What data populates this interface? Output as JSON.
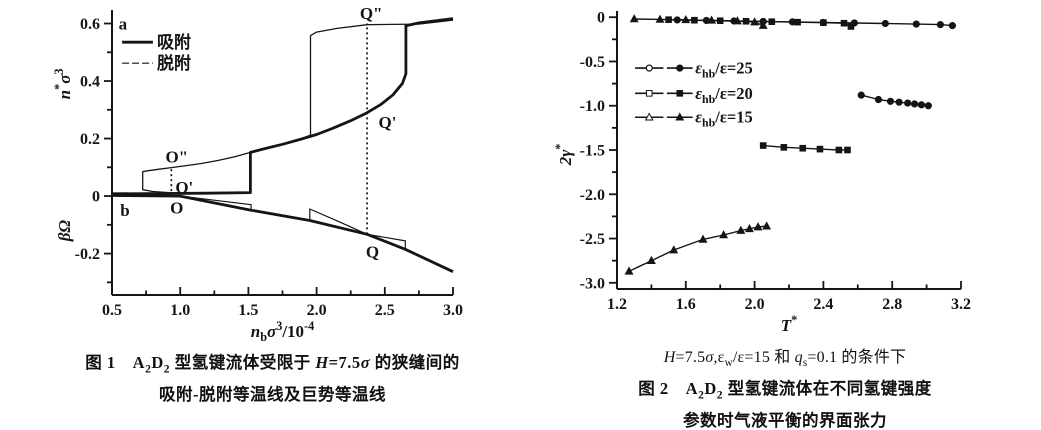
{
  "colors": {
    "ink": "#151515",
    "background": "#ffffff"
  },
  "figure1": {
    "caption1_runs": [
      {
        "t": "图 1　A"
      },
      {
        "t": "2",
        "sub": true
      },
      {
        "t": "D"
      },
      {
        "t": "2",
        "sub": true
      },
      {
        "t": " 型氢键流体受限于 "
      },
      {
        "t": "H",
        "i": true
      },
      {
        "t": "=7.5"
      },
      {
        "t": "σ",
        "i": true
      },
      {
        "t": " 的狭缝间的"
      }
    ],
    "caption2": "吸附-脱附等温线及巨势等温线"
  },
  "figure2": {
    "cond_runs": [
      {
        "t": "H",
        "i": true
      },
      {
        "t": "=7.5"
      },
      {
        "t": "σ",
        "i": true
      },
      {
        "t": ",ε"
      },
      {
        "t": "w",
        "sub": true
      },
      {
        "t": "/ε=15 和 "
      },
      {
        "t": "q",
        "i": true
      },
      {
        "t": "s",
        "sub": true
      },
      {
        "t": "=0.1 的条件下"
      }
    ],
    "caption1_runs": [
      {
        "t": "图 2　A"
      },
      {
        "t": "2",
        "sub": true
      },
      {
        "t": "D"
      },
      {
        "t": "2",
        "sub": true
      },
      {
        "t": " 型氢键流体在不同氢键强度"
      }
    ],
    "caption2": "参数时气液平衡的界面张力"
  },
  "chart_data": [
    {
      "id": "fig1",
      "type": "line",
      "title": "图1 A2D2 型氢键流体受限于 H=7.5σ 的狭缝间的吸附-脱附等温线及巨势等温线",
      "size": [
        515,
        345
      ],
      "plot": [
        97,
        10,
        438,
        295
      ],
      "xlim": [
        0.5,
        3.0
      ],
      "ylim": [
        -0.344,
        0.647
      ],
      "xticks": [
        {
          "v": 0.5,
          "l": "0.5"
        },
        {
          "v": 1.0,
          "l": "1.0"
        },
        {
          "v": 1.5,
          "l": "1.5"
        },
        {
          "v": 2.0,
          "l": "2.0"
        },
        {
          "v": 2.5,
          "l": "2.5"
        },
        {
          "v": 3.0,
          "l": "3.0"
        }
      ],
      "xminor": [
        0.75,
        1.25,
        1.75,
        2.25,
        2.75
      ],
      "yticks": [
        {
          "v": 0.6,
          "l": "0.6"
        },
        {
          "v": 0.4,
          "l": "0.4"
        },
        {
          "v": 0.2,
          "l": "0.2"
        },
        {
          "v": 0,
          "l": "0"
        },
        {
          "v": -0.2,
          "l": "-0.2"
        }
      ],
      "yminor": [
        0.5,
        0.3,
        0.1,
        -0.1,
        -0.3
      ],
      "xlabel_runs": [
        {
          "t": "n",
          "i": true
        },
        {
          "t": "b",
          "sub": true
        },
        {
          "t": "σ",
          "i": true
        },
        {
          "t": "3",
          "sup": true
        },
        {
          "t": "/10"
        },
        {
          "t": "-4",
          "sup": true
        }
      ],
      "ylabels": [
        {
          "name": "density-axis-label",
          "runs": [
            {
              "t": "n",
              "i": true
            },
            {
              "t": "*",
              "sup": true
            },
            {
              "t": "σ",
              "i": true
            },
            {
              "t": "3",
              "sup": true
            }
          ],
          "at": 0.39,
          "dx": -42
        },
        {
          "name": "grand-potential-axis-label",
          "runs": [
            {
              "t": "βΩ",
              "i": true
            }
          ],
          "at": -0.12,
          "dx": -42
        }
      ],
      "series": [
        {
          "name": "adsorption-isotherm",
          "label": "吸附",
          "width": 2.8,
          "points": [
            [
              0.5,
              0.008
            ],
            [
              0.9,
              0.009
            ],
            [
              1.2,
              0.01
            ],
            [
              1.515,
              0.012
            ],
            [
              1.515,
              0.152
            ],
            [
              1.62,
              0.165
            ],
            [
              1.75,
              0.18
            ],
            [
              1.88,
              0.197
            ],
            [
              2.0,
              0.214
            ],
            [
              2.12,
              0.236
            ],
            [
              2.25,
              0.262
            ],
            [
              2.37,
              0.29
            ],
            [
              2.47,
              0.318
            ],
            [
              2.56,
              0.352
            ],
            [
              2.63,
              0.392
            ],
            [
              2.655,
              0.425
            ],
            [
              2.655,
              0.592
            ],
            [
              2.75,
              0.602
            ],
            [
              3.0,
              0.617
            ]
          ]
        },
        {
          "name": "desorption-isotherm",
          "label": "脱附",
          "width": 1.3,
          "points": [
            [
              3.0,
              0.612
            ],
            [
              2.75,
              0.598
            ],
            [
              2.55,
              0.597
            ],
            [
              2.37,
              0.596
            ],
            [
              2.15,
              0.583
            ],
            [
              2.0,
              0.57
            ],
            [
              1.955,
              0.558
            ],
            [
              1.955,
              0.212
            ],
            [
              1.88,
              0.197
            ],
            [
              1.75,
              0.18
            ],
            [
              1.62,
              0.165
            ],
            [
              1.515,
              0.152
            ],
            [
              1.4,
              0.137
            ],
            [
              1.28,
              0.124
            ],
            [
              1.15,
              0.113
            ],
            [
              1.03,
              0.105
            ],
            [
              0.935,
              0.099
            ],
            [
              0.84,
              0.093
            ],
            [
              0.76,
              0.088
            ],
            [
              0.725,
              0.085
            ],
            [
              0.725,
              0.022
            ],
            [
              0.8,
              0.016
            ],
            [
              0.92,
              0.012
            ],
            [
              1.05,
              0.01
            ]
          ]
        },
        {
          "name": "grand-potential-adsorption",
          "width": 2.8,
          "points": [
            [
              0.5,
              0.002
            ],
            [
              1.0,
              0.0
            ],
            [
              1.52,
              -0.049
            ],
            [
              1.95,
              -0.085
            ],
            [
              2.37,
              -0.133
            ],
            [
              2.65,
              -0.185
            ],
            [
              3.0,
              -0.263
            ]
          ]
        },
        {
          "name": "grand-potential-desorption-low",
          "width": 1.2,
          "points": [
            [
              1.0,
              0.0
            ],
            [
              1.28,
              -0.016
            ],
            [
              1.52,
              -0.03
            ],
            [
              1.52,
              -0.049
            ]
          ]
        },
        {
          "name": "grand-potential-desorption-high",
          "width": 1.2,
          "points": [
            [
              1.95,
              -0.085
            ],
            [
              1.95,
              -0.045
            ],
            [
              2.16,
              -0.088
            ],
            [
              2.37,
              -0.133
            ],
            [
              2.52,
              -0.145
            ],
            [
              2.65,
              -0.156
            ],
            [
              2.65,
              -0.185
            ]
          ]
        }
      ],
      "vlines": [
        {
          "name": "equilibrium-line-O",
          "x": 0.935,
          "y1": 0.0,
          "y2": 0.098
        },
        {
          "name": "equilibrium-line-Q",
          "x": 2.37,
          "y1": -0.133,
          "y2": 0.6
        }
      ],
      "legend": {
        "items": [
          {
            "label": "吸附",
            "x1": 0.574,
            "x2": 0.8,
            "lx": 0.83,
            "y": 0.535,
            "width": 2.8,
            "dash": ""
          },
          {
            "label": "脱附",
            "x1": 0.574,
            "x2": 0.8,
            "lx": 0.83,
            "y": 0.462,
            "width": 1.2,
            "dash": "7 3"
          }
        ]
      },
      "annotations": [
        {
          "text": "a",
          "x": 0.58,
          "y": 0.6
        },
        {
          "text": "b",
          "x": 0.595,
          "y": -0.048
        },
        {
          "text": "O\"",
          "x": 0.975,
          "y": 0.138
        },
        {
          "text": "O'",
          "x": 1.03,
          "y": 0.032
        },
        {
          "text": "O",
          "x": 0.975,
          "y": -0.04
        },
        {
          "text": "Q\"",
          "x": 2.4,
          "y": 0.637
        },
        {
          "text": "Q'",
          "x": 2.52,
          "y": 0.258
        },
        {
          "text": "Q",
          "x": 2.41,
          "y": -0.192
        }
      ]
    },
    {
      "id": "fig2",
      "type": "scatter",
      "title": "图2 A2D2 型氢键流体在不同氢键强度参数时气液平衡的界面张力 (H=7.5σ, εw/ε=15, qs=0.1)",
      "size": [
        480,
        340
      ],
      "plot": [
        72,
        11,
        416,
        289
      ],
      "xlim": [
        1.2,
        3.2
      ],
      "ylim": [
        -3.07,
        0.07
      ],
      "xticks": [
        {
          "v": 1.2,
          "l": "1.2"
        },
        {
          "v": 1.6,
          "l": "1.6"
        },
        {
          "v": 2.0,
          "l": "2.0"
        },
        {
          "v": 2.4,
          "l": "2.4"
        },
        {
          "v": 2.8,
          "l": "2.8"
        },
        {
          "v": 3.2,
          "l": "3.2"
        }
      ],
      "xminor": [
        1.4,
        1.8,
        2.2,
        2.6,
        3.0
      ],
      "yticks": [
        {
          "v": 0,
          "l": "0"
        },
        {
          "v": -0.5,
          "l": "-0.5"
        },
        {
          "v": -1.0,
          "l": "-1.0"
        },
        {
          "v": -1.5,
          "l": "-1.5"
        },
        {
          "v": -2.0,
          "l": "-2.0"
        },
        {
          "v": -2.5,
          "l": "-2.5"
        },
        {
          "v": -3.0,
          "l": "-3.0"
        }
      ],
      "yminor": [
        -0.25,
        -0.75,
        -1.25,
        -1.75,
        -2.25,
        -2.75
      ],
      "xlabel_runs": [
        {
          "t": "T",
          "i": true
        },
        {
          "t": "*",
          "sup": true
        }
      ],
      "ylabels": [
        {
          "name": "surface-tension-axis-label",
          "runs": [
            {
              "t": "2γ",
              "i": true
            },
            {
              "t": "*",
              "sup": true
            }
          ],
          "at": -1.55,
          "dx": -46
        }
      ],
      "series": [
        {
          "name": "eps25-vapor-branch",
          "marker": "circle",
          "width": 1.4,
          "points": [
            [
              1.55,
              -0.031
            ],
            [
              1.72,
              -0.037
            ],
            [
              1.88,
              -0.043
            ],
            [
              2.05,
              -0.048
            ],
            [
              2.22,
              -0.053
            ],
            [
              2.4,
              -0.059
            ],
            [
              2.58,
              -0.065
            ],
            [
              2.76,
              -0.071
            ],
            [
              2.94,
              -0.078
            ],
            [
              3.08,
              -0.084
            ],
            [
              3.15,
              -0.095
            ]
          ]
        },
        {
          "name": "eps20-vapor-branch",
          "marker": "square",
          "width": 1.4,
          "points": [
            [
              1.5,
              -0.028
            ],
            [
              1.65,
              -0.034
            ],
            [
              1.8,
              -0.04
            ],
            [
              1.95,
              -0.046
            ],
            [
              2.1,
              -0.051
            ],
            [
              2.25,
              -0.056
            ],
            [
              2.4,
              -0.062
            ],
            [
              2.52,
              -0.068
            ],
            [
              2.56,
              -0.105
            ]
          ]
        },
        {
          "name": "eps15-vapor-branch",
          "marker": "triangle",
          "width": 1.4,
          "points": [
            [
              1.3,
              -0.02
            ],
            [
              1.45,
              -0.025
            ],
            [
              1.6,
              -0.03
            ],
            [
              1.75,
              -0.036
            ],
            [
              1.9,
              -0.044
            ],
            [
              2.0,
              -0.055
            ],
            [
              2.05,
              -0.095
            ]
          ]
        },
        {
          "name": "eps25-liquid-branch",
          "marker": "circle",
          "width": 1.4,
          "points": [
            [
              2.62,
              -0.88
            ],
            [
              2.72,
              -0.93
            ],
            [
              2.79,
              -0.95
            ],
            [
              2.84,
              -0.96
            ],
            [
              2.89,
              -0.97
            ],
            [
              2.93,
              -0.98
            ],
            [
              2.97,
              -0.99
            ],
            [
              3.01,
              -1.0
            ]
          ]
        },
        {
          "name": "eps20-liquid-branch",
          "marker": "square",
          "width": 1.4,
          "points": [
            [
              2.05,
              -1.45
            ],
            [
              2.17,
              -1.47
            ],
            [
              2.28,
              -1.48
            ],
            [
              2.38,
              -1.49
            ],
            [
              2.49,
              -1.5
            ],
            [
              2.54,
              -1.5
            ]
          ]
        },
        {
          "name": "eps15-liquid-branch",
          "marker": "triangle",
          "width": 1.4,
          "points": [
            [
              1.27,
              -2.87
            ],
            [
              1.4,
              -2.75
            ],
            [
              1.53,
              -2.63
            ],
            [
              1.7,
              -2.51
            ],
            [
              1.82,
              -2.46
            ],
            [
              1.92,
              -2.41
            ],
            [
              1.97,
              -2.39
            ],
            [
              2.02,
              -2.37
            ],
            [
              2.07,
              -2.36
            ]
          ]
        }
      ],
      "legend2": {
        "items": [
          {
            "marker": "circle",
            "y": -0.575,
            "segs": [
              [
                1.305,
                1.47
              ],
              [
                1.49,
                1.64
              ]
            ],
            "lx": 1.655,
            "label_runs": [
              {
                "t": "ε",
                "i": true
              },
              {
                "t": "hb",
                "sub": true
              },
              {
                "t": "/ε=25"
              }
            ]
          },
          {
            "marker": "square",
            "y": -0.86,
            "segs": [
              [
                1.305,
                1.47
              ],
              [
                1.49,
                1.64
              ]
            ],
            "lx": 1.655,
            "label_runs": [
              {
                "t": "ε",
                "i": true
              },
              {
                "t": "hb",
                "sub": true
              },
              {
                "t": "/ε=20"
              }
            ]
          },
          {
            "marker": "triangle",
            "y": -1.13,
            "segs": [
              [
                1.305,
                1.47
              ],
              [
                1.49,
                1.64
              ]
            ],
            "lx": 1.655,
            "label_runs": [
              {
                "t": "ε",
                "i": true
              },
              {
                "t": "hb",
                "sub": true
              },
              {
                "t": "/ε=15"
              }
            ]
          }
        ]
      }
    }
  ]
}
